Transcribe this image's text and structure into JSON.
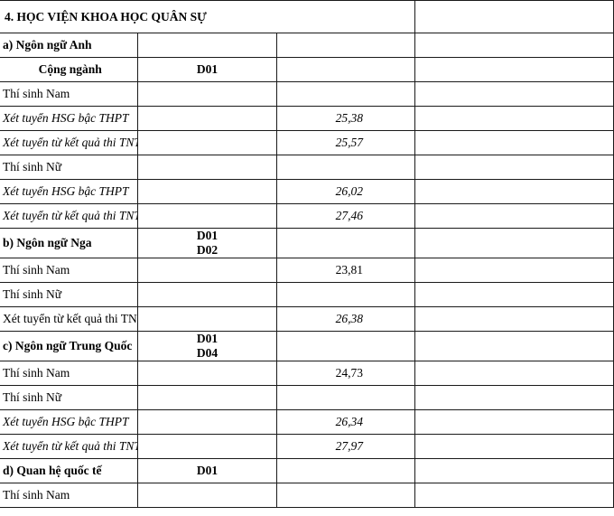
{
  "section_title": "4. HỌC VIỆN KHOA HỌC QUÂN SỰ",
  "rows": [
    {
      "label": "a) Ngôn ngữ Anh",
      "style": "bold",
      "codes": [],
      "score": ""
    },
    {
      "label": "Cộng ngành",
      "style": "bold-center",
      "codes": [
        "D01"
      ],
      "score": ""
    },
    {
      "label": "Thí sinh Nam",
      "style": "normal",
      "codes": [],
      "score": ""
    },
    {
      "label": "Xét tuyển HSG bậc THPT",
      "style": "italic",
      "codes": [],
      "score": "25,38",
      "score_italic": true
    },
    {
      "label": "Xét tuyển từ kết quả thi TNTHPT",
      "style": "italic",
      "codes": [],
      "score": "25,57",
      "score_italic": true
    },
    {
      "label": "Thí sinh Nữ",
      "style": "normal",
      "codes": [],
      "score": ""
    },
    {
      "label": "Xét tuyển HSG bậc THPT",
      "style": "italic",
      "codes": [],
      "score": "26,02",
      "score_italic": true
    },
    {
      "label": "Xét tuyển từ kết quả thi TNTHPT",
      "style": "italic",
      "codes": [],
      "score": "27,46",
      "score_italic": true
    },
    {
      "label": "b) Ngôn ngữ Nga",
      "style": "bold",
      "codes": [
        "D01",
        "D02"
      ],
      "score": ""
    },
    {
      "label": "Thí sinh Nam",
      "style": "normal",
      "codes": [],
      "score": "23,81",
      "score_italic": false
    },
    {
      "label": "Thí sinh Nữ",
      "style": "normal",
      "codes": [],
      "score": ""
    },
    {
      "label": "Xét tuyển từ kết quả thi TNTHPT",
      "style": "normal",
      "codes": [],
      "score": "26,38",
      "score_italic": true
    },
    {
      "label": "c) Ngôn ngữ Trung Quốc",
      "style": "bold",
      "codes": [
        "D01",
        "D04"
      ],
      "score": ""
    },
    {
      "label": "Thí sinh Nam",
      "style": "normal",
      "codes": [],
      "score": "24,73",
      "score_italic": false
    },
    {
      "label": "Thí sinh Nữ",
      "style": "normal",
      "codes": [],
      "score": ""
    },
    {
      "label": "Xét tuyển HSG bậc THPT",
      "style": "italic",
      "codes": [],
      "score": "26,34",
      "score_italic": true
    },
    {
      "label": "Xét tuyển từ kết quả thi TNTHPT",
      "style": "italic",
      "codes": [],
      "score": "27,97",
      "score_italic": true
    },
    {
      "label": "d) Quan hệ quốc tế",
      "style": "bold",
      "codes": [
        "D01"
      ],
      "score": ""
    },
    {
      "label": "Thí sinh Nam",
      "style": "normal",
      "codes": [],
      "score": ""
    }
  ]
}
